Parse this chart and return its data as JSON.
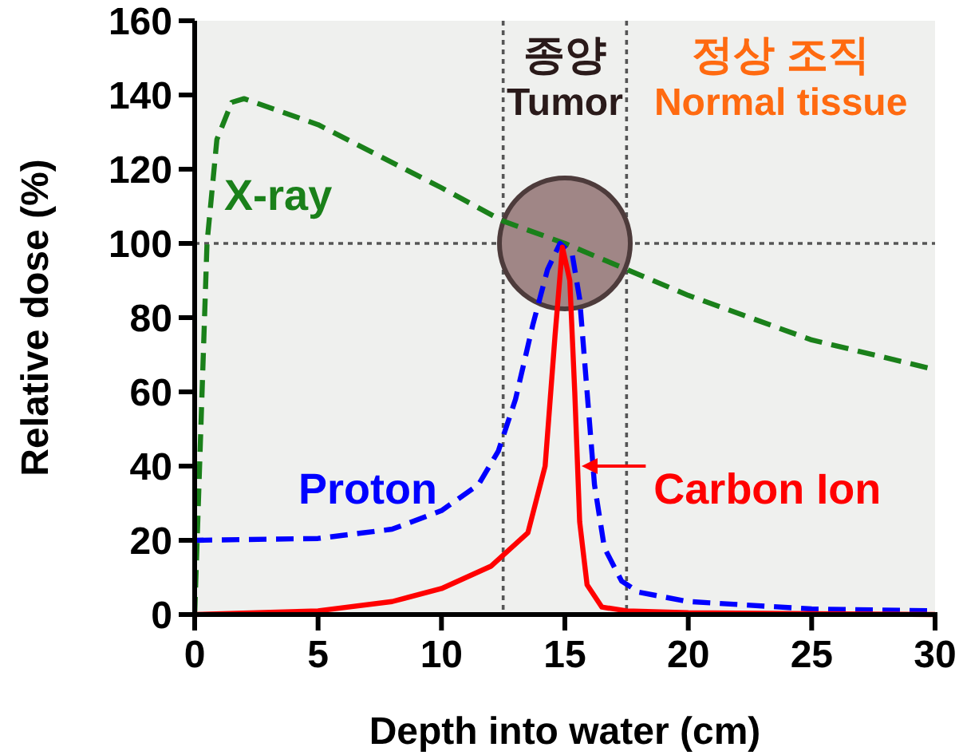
{
  "chart_data": {
    "type": "line",
    "xlabel": "Depth into water (cm)",
    "ylabel": "Relative dose (%)",
    "xlim": [
      0,
      30
    ],
    "ylim": [
      0,
      160
    ],
    "xticks": [
      0,
      5,
      10,
      15,
      20,
      25,
      30
    ],
    "yticks": [
      0,
      20,
      40,
      60,
      80,
      100,
      120,
      140,
      160
    ],
    "grid": false,
    "series": [
      {
        "name": "X-ray",
        "color": "#1a801a",
        "line_style": "dashed",
        "x": [
          0,
          0.2,
          0.5,
          0.9,
          1.5,
          2,
          5,
          10,
          12.5,
          15,
          17.5,
          20,
          25,
          30
        ],
        "values": [
          0,
          40,
          100,
          128,
          138,
          139,
          132,
          115,
          106,
          100,
          93,
          86,
          74,
          66
        ]
      },
      {
        "name": "Proton",
        "color": "#0000ff",
        "line_style": "dashed",
        "x": [
          0,
          5,
          8,
          10,
          11.5,
          12.3,
          13,
          13.7,
          14.3,
          14.8,
          15.3,
          15.6,
          15.9,
          16.2,
          16.6,
          17.3,
          18,
          20,
          25,
          30
        ],
        "values": [
          20,
          20.5,
          23,
          28,
          35,
          44,
          58,
          78,
          93,
          100,
          97,
          85,
          60,
          35,
          18,
          9,
          6,
          3.5,
          1.5,
          1
        ]
      },
      {
        "name": "Carbon Ion",
        "color": "#ff0000",
        "line_style": "solid",
        "x": [
          0,
          5,
          8,
          10,
          12,
          13.5,
          14.2,
          14.6,
          14.9,
          15.2,
          15.4,
          15.6,
          15.9,
          16.5,
          17.5,
          20,
          30
        ],
        "values": [
          0,
          1,
          3.5,
          7,
          13,
          22,
          40,
          75,
          99,
          90,
          60,
          25,
          8,
          2,
          1,
          0.5,
          0
        ]
      }
    ],
    "ref_lines": [
      {
        "axis": "y",
        "value": 100,
        "line_style": "dotted"
      },
      {
        "axis": "x",
        "value": 12.5,
        "line_style": "dotted"
      },
      {
        "axis": "x",
        "value": 17.5,
        "line_style": "dotted"
      }
    ],
    "annotations": [
      "종양",
      "Tumor",
      "정상 조직",
      "Normal tissue"
    ]
  }
}
